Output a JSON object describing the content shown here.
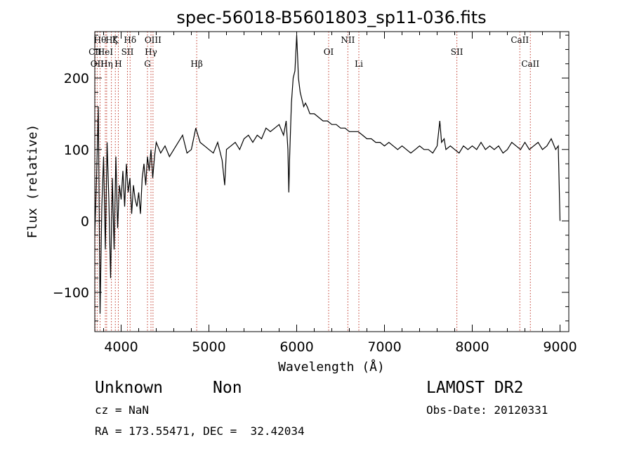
{
  "chart_data": {
    "type": "line",
    "title": "spec-56018-B5601803_sp11-036.fits",
    "xlabel": "Wavelength (Å)",
    "ylabel": "Flux (relative)",
    "xlim": [
      3700,
      9100
    ],
    "ylim": [
      -155,
      265
    ],
    "xticks": [
      4000,
      5000,
      6000,
      7000,
      8000,
      9000
    ],
    "yticks": [
      -100,
      0,
      100,
      200
    ],
    "ytick_labels": [
      "−100",
      "0",
      "100",
      "200"
    ],
    "grid": false,
    "series": [
      {
        "x": [
          3700,
          3720,
          3740,
          3760,
          3780,
          3800,
          3820,
          3840,
          3860,
          3880,
          3900,
          3920,
          3940,
          3960,
          3980,
          4000,
          4020,
          4040,
          4060,
          4080,
          4100,
          4120,
          4140,
          4160,
          4180,
          4200,
          4220,
          4240,
          4260,
          4280,
          4300,
          4320,
          4340,
          4360,
          4380,
          4400,
          4450,
          4500,
          4550,
          4600,
          4650,
          4700,
          4750,
          4800,
          4850,
          4900,
          4950,
          5000,
          5050,
          5100,
          5150,
          5180,
          5200,
          5250,
          5300,
          5350,
          5400,
          5450,
          5500,
          5550,
          5600,
          5650,
          5700,
          5750,
          5800,
          5850,
          5880,
          5900,
          5910,
          5920,
          5930,
          5940,
          5960,
          5980,
          6000,
          6010,
          6020,
          6040,
          6060,
          6080,
          6100,
          6120,
          6150,
          6200,
          6250,
          6300,
          6350,
          6400,
          6450,
          6500,
          6550,
          6600,
          6650,
          6700,
          6750,
          6800,
          6850,
          6900,
          6950,
          7000,
          7050,
          7100,
          7150,
          7200,
          7250,
          7300,
          7350,
          7400,
          7450,
          7500,
          7550,
          7600,
          7630,
          7650,
          7680,
          7700,
          7750,
          7800,
          7850,
          7900,
          7950,
          8000,
          8050,
          8100,
          8150,
          8200,
          8250,
          8300,
          8350,
          8400,
          8450,
          8500,
          8550,
          8600,
          8650,
          8700,
          8750,
          8800,
          8850,
          8900,
          8950,
          8980,
          9000
        ],
        "y": [
          -20,
          60,
          160,
          -130,
          20,
          90,
          -40,
          110,
          30,
          -80,
          60,
          -40,
          90,
          -10,
          50,
          30,
          70,
          20,
          80,
          40,
          60,
          10,
          50,
          30,
          20,
          40,
          10,
          60,
          80,
          50,
          90,
          70,
          100,
          60,
          90,
          110,
          95,
          105,
          90,
          100,
          110,
          120,
          95,
          100,
          130,
          110,
          105,
          100,
          95,
          110,
          85,
          50,
          100,
          105,
          110,
          100,
          115,
          120,
          110,
          120,
          115,
          130,
          125,
          130,
          135,
          120,
          140,
          100,
          40,
          90,
          130,
          165,
          200,
          210,
          260,
          230,
          200,
          180,
          170,
          160,
          165,
          160,
          150,
          150,
          145,
          140,
          140,
          135,
          135,
          130,
          130,
          125,
          125,
          125,
          120,
          115,
          115,
          110,
          110,
          105,
          110,
          105,
          100,
          105,
          100,
          95,
          100,
          105,
          100,
          100,
          95,
          105,
          140,
          110,
          115,
          100,
          105,
          100,
          95,
          105,
          100,
          105,
          100,
          110,
          100,
          105,
          100,
          105,
          95,
          100,
          110,
          105,
          100,
          110,
          100,
          105,
          110,
          100,
          105,
          115,
          100,
          105,
          0
        ]
      }
    ],
    "lines": [
      {
        "wave": 3704,
        "label": "CII",
        "row": 2
      },
      {
        "wave": 3727,
        "label": "OII",
        "row": 3
      },
      {
        "wave": 3760,
        "label": "Hθ",
        "row": 1
      },
      {
        "wave": 3820,
        "label": "HeI",
        "row": 2
      },
      {
        "wave": 3835,
        "label": "Hη",
        "row": 3
      },
      {
        "wave": 3889,
        "label": "Hζ",
        "row": 1
      },
      {
        "wave": 3934,
        "label": "K",
        "row": 1
      },
      {
        "wave": 3968,
        "label": "H",
        "row": 3
      },
      {
        "wave": 4072,
        "label": "SII",
        "row": 2
      },
      {
        "wave": 4102,
        "label": "Hδ",
        "row": 1
      },
      {
        "wave": 4300,
        "label": "G",
        "row": 3
      },
      {
        "wave": 4340,
        "label": "Hγ",
        "row": 2
      },
      {
        "wave": 4363,
        "label": "OIII",
        "row": 1
      },
      {
        "wave": 4861,
        "label": "Hβ",
        "row": 3
      },
      {
        "wave": 6364,
        "label": "OI",
        "row": 2
      },
      {
        "wave": 6583,
        "label": "NII",
        "row": 1
      },
      {
        "wave": 6708,
        "label": "Li",
        "row": 3
      },
      {
        "wave": 7825,
        "label": "SII",
        "row": 2
      },
      {
        "wave": 8542,
        "label": "CaII",
        "row": 1
      },
      {
        "wave": 8662,
        "label": "CaII",
        "row": 3
      }
    ]
  },
  "info": {
    "class": "Unknown",
    "subclass": "Non",
    "survey": "LAMOST DR2",
    "cz": "cz = NaN",
    "obs_date": "Obs-Date: 20120331",
    "coords": "RA = 173.55471, DEC =  32.42034"
  }
}
